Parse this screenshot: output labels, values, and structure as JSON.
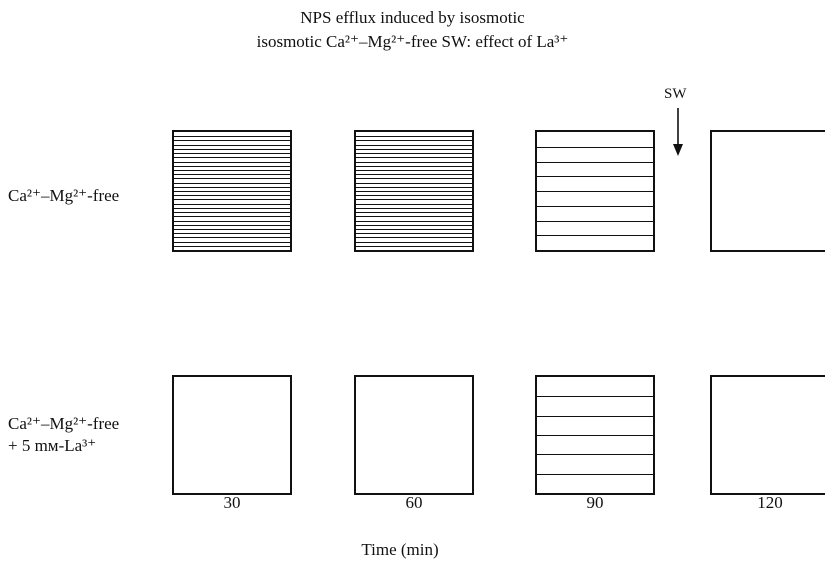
{
  "title_line1": "NPS efflux induced by isosmotic",
  "title_line2": "isosmotic Ca²⁺–Mg²⁺-free SW: effect of La³⁺",
  "rows": [
    {
      "label_lines": [
        "Ca²⁺–Mg²⁺-free"
      ]
    },
    {
      "label_lines": [
        "Ca²⁺–Mg²⁺-free",
        "+ 5 mм-La³⁺"
      ]
    }
  ],
  "columns": [
    "30",
    "60",
    "90",
    "120"
  ],
  "x_axis_label": "Time (min)",
  "arrow_label": "SW",
  "cells": [
    [
      {
        "stripes": 28
      },
      {
        "stripes": 28
      },
      {
        "stripes": 8
      },
      {
        "stripes": 0
      }
    ],
    [
      {
        "stripes": 0
      },
      {
        "stripes": 0
      },
      {
        "stripes": 6
      },
      {
        "stripes": 0
      }
    ]
  ]
}
